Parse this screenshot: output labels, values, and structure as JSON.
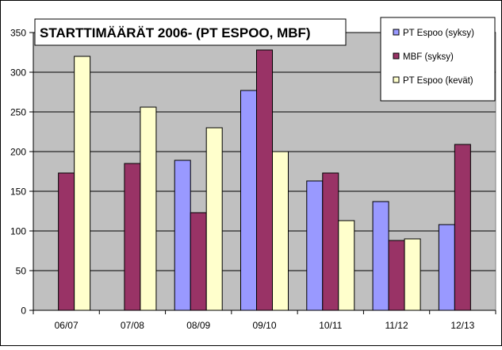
{
  "chart_data": {
    "type": "bar",
    "title": "STARTTIMÄÄRÄT 2006-  (PT ESPOO, MBF)",
    "xlabel": "",
    "ylabel": "",
    "ylim": [
      0,
      350
    ],
    "yticks": [
      0,
      50,
      100,
      150,
      200,
      250,
      300,
      350
    ],
    "grid": true,
    "legend_position": "top-right",
    "categories": [
      "06/07",
      "07/08",
      "08/09",
      "09/10",
      "10/11",
      "11/12",
      "12/13"
    ],
    "series": [
      {
        "name": "PT Espoo (syksy)",
        "color": "#9999ff",
        "values": [
          0,
          0,
          189,
          277,
          163,
          137,
          108
        ]
      },
      {
        "name": "MBF (syksy)",
        "color": "#993366",
        "values": [
          173,
          185,
          123,
          328,
          173,
          88,
          209
        ]
      },
      {
        "name": "PT Espoo (kevät)",
        "color": "#ffffcc",
        "values": [
          320,
          256,
          230,
          200,
          113,
          90,
          null
        ]
      }
    ],
    "plot_background": "#c0c0c0"
  }
}
